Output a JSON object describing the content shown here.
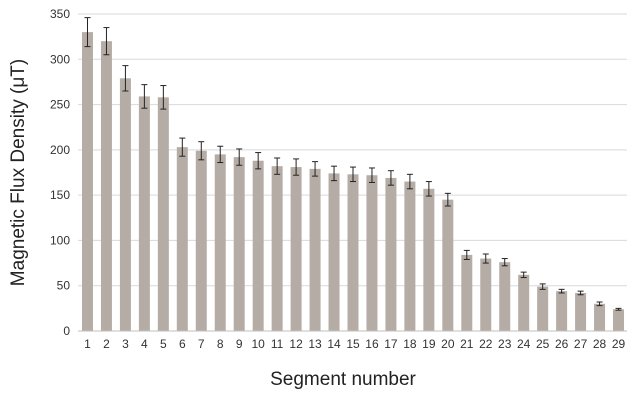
{
  "chart_data": {
    "type": "bar",
    "title": "",
    "xlabel": "Segment number",
    "ylabel": "Magnetic Flux Density (μT)",
    "ylim": [
      0,
      350
    ],
    "yticks": [
      0,
      50,
      100,
      150,
      200,
      250,
      300,
      350
    ],
    "grid": true,
    "legend": "none",
    "bar_color": "#b6aca6",
    "categories": [
      "1",
      "2",
      "3",
      "4",
      "5",
      "6",
      "7",
      "8",
      "9",
      "10",
      "11",
      "12",
      "13",
      "14",
      "15",
      "16",
      "17",
      "18",
      "19",
      "20",
      "21",
      "22",
      "23",
      "24",
      "25",
      "26",
      "27",
      "28",
      "29"
    ],
    "values": [
      330,
      320,
      279,
      259,
      258,
      203,
      199,
      195,
      192,
      188,
      182,
      181,
      179,
      174,
      173,
      172,
      169,
      165,
      157,
      145,
      84,
      80,
      76,
      62,
      49,
      44,
      42,
      30,
      24
    ],
    "errors": [
      16,
      15,
      14,
      13,
      13,
      10,
      10,
      9,
      9,
      9,
      9,
      9,
      8,
      8,
      8,
      8,
      8,
      8,
      8,
      7,
      5,
      5,
      4,
      3,
      3,
      2,
      2,
      2,
      1
    ]
  }
}
